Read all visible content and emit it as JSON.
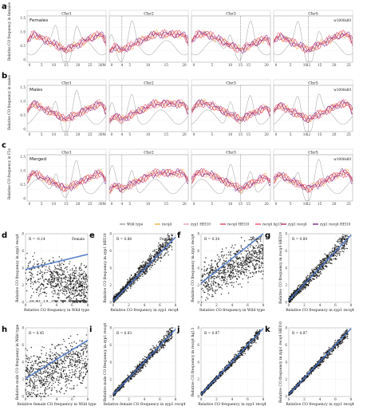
{
  "chart_data": [
    {
      "type": "line",
      "panel": "a",
      "row_title": "Females",
      "window_label": "w1000s60",
      "facets": [
        "Chr1",
        "Chr2",
        "Chr3",
        "Chr5"
      ],
      "y_label": "Relative CO frequency in females",
      "x_ticks": {
        "Chr1": [
          "0",
          "5",
          "10",
          "15",
          "20",
          "25",
          "30M"
        ],
        "Chr2": [
          "0",
          "5",
          "10",
          "15",
          "20"
        ],
        "Chr3": [
          "0",
          "5",
          "10",
          "15",
          "20"
        ],
        "Chr5": [
          "0",
          "5",
          "10",
          "15",
          "20",
          "25"
        ]
      },
      "centromere_label": {
        "Chr1": "15",
        "Chr2": "4",
        "Chr3": "15",
        "Chr5": "12"
      }
    },
    {
      "type": "line",
      "panel": "b",
      "row_title": "Males",
      "window_label": "w1000s60",
      "facets": [
        "Chr1",
        "Chr2",
        "Chr3",
        "Chr5"
      ],
      "y_label": "Relative CO frequency in males",
      "x_ticks": {
        "Chr1": [
          "0",
          "5",
          "10",
          "15",
          "20",
          "25",
          "30M"
        ],
        "Chr2": [
          "0",
          "5",
          "10",
          "15",
          "20"
        ],
        "Chr3": [
          "0",
          "5",
          "10",
          "15",
          "20"
        ],
        "Chr5": [
          "0",
          "5",
          "10",
          "15",
          "20",
          "25"
        ]
      },
      "centromere_label": {
        "Chr1": "15",
        "Chr2": "4",
        "Chr3": "15",
        "Chr5": "12"
      }
    },
    {
      "type": "line",
      "panel": "c",
      "row_title": "Merged",
      "window_label": "w1000s60",
      "facets": [
        "Chr1",
        "Chr2",
        "Chr3",
        "Chr5"
      ],
      "y_label": "Relative CO frequency in F2s",
      "x_ticks": {
        "Chr1": [
          "0",
          "5",
          "10",
          "15",
          "20",
          "25",
          "30M"
        ],
        "Chr2": [
          "0",
          "5",
          "10",
          "15",
          "20"
        ],
        "Chr3": [
          "0",
          "5",
          "10",
          "15",
          "20"
        ],
        "Chr5": [
          "0",
          "5",
          "10",
          "15",
          "20",
          "25"
        ]
      },
      "centromere_label": {
        "Chr1": "15",
        "Chr2": "4",
        "Chr3": "15",
        "Chr5": "12"
      }
    },
    {
      "type": "scatter",
      "panels": [
        {
          "id": "d",
          "r": "R = -0.14",
          "tag": "Female",
          "xlabel": "Relative CO frequency in Wild type",
          "ylabel": "Relative CO frequency in zyp1 recq4",
          "pattern": "d"
        },
        {
          "id": "e",
          "r": "R = 0.86",
          "tag": "Female",
          "xlabel": "Relative CO frequency in zyp1 recq4",
          "ylabel": "Relative CO frequency in zyp1 HEI10",
          "pattern": "e"
        },
        {
          "id": "f",
          "r": "R = 0.34",
          "tag": "Male",
          "xlabel": "Relative CO frequency in Wild type",
          "ylabel": "Relative CO frequency in zyp1 recq4",
          "pattern": "f"
        },
        {
          "id": "g",
          "r": "R = 0.89",
          "tag": "Male",
          "xlabel": "Relative CO frequency in zyp1 recq4",
          "ylabel": "Relative CO frequency in recq4 HEI10",
          "pattern": "g"
        },
        {
          "id": "h",
          "r": "R = 0.45",
          "tag": "",
          "xlabel": "Relative female CO frequency in Wild type",
          "ylabel": "Relative male CO frequency in Wild type",
          "pattern": "h"
        },
        {
          "id": "i",
          "r": "R = 0.93",
          "tag": "",
          "xlabel": "Relative female CO frequency in zyp1 recq4",
          "ylabel": "Relative male CO frequency in zyp1 recq4",
          "pattern": "i"
        },
        {
          "id": "j",
          "r": "R = 0.97",
          "tag": "F2",
          "xlabel": "Relative CO frequency in zyp1 recq4",
          "ylabel": "Relative CO frequency in recq4 lig13",
          "pattern": "j"
        },
        {
          "id": "k",
          "r": "R = 0.97",
          "tag": "F2",
          "xlabel": "Relative CO frequency in zyp1 recq4",
          "ylabel": "Relative CO frequency in zyp1 recq4 HEI10",
          "pattern": "k"
        }
      ]
    }
  ],
  "legend": [
    {
      "label": "Wild type",
      "color": "#9b9b9b"
    },
    {
      "label": "recq4",
      "color": "#f2b04a"
    },
    {
      "label": "zyp1 HEI10",
      "color": "#f0a0b0"
    },
    {
      "label": "recq4 HEI10",
      "color": "#d8455e"
    },
    {
      "label": "recq4 lig13",
      "color": "#e8506a"
    },
    {
      "label": "zyp1 recq4",
      "color": "#b0306a"
    },
    {
      "label": "zyp1 recq4 HEI10",
      "color": "#7a2a8a"
    }
  ],
  "panel_letters": [
    "a",
    "b",
    "c",
    "d",
    "e",
    "f",
    "g",
    "h",
    "i",
    "j",
    "k"
  ],
  "colors": {
    "fit": "#4a78c8",
    "points": "#111111",
    "centromere": "#555555"
  }
}
